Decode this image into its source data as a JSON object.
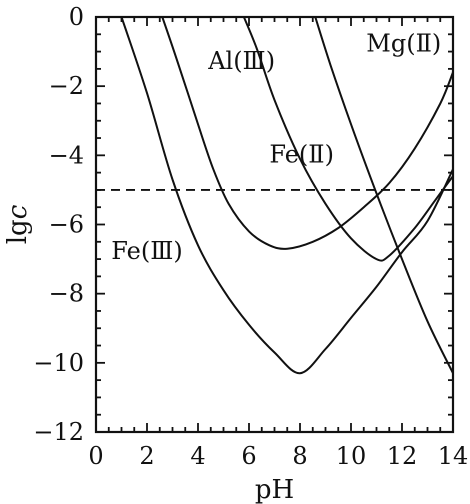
{
  "chart_data": {
    "type": "line",
    "xlabel": "pH",
    "ylabel": "lgc",
    "xlim": [
      0,
      14
    ],
    "ylim": [
      -12,
      0
    ],
    "x_ticks": [
      0,
      2,
      4,
      6,
      8,
      10,
      12,
      14
    ],
    "y_ticks": [
      0,
      -2,
      -4,
      -6,
      -8,
      -10,
      -12
    ],
    "x_tick_labels": [
      "0",
      "2",
      "4",
      "6",
      "8",
      "10",
      "12",
      "14"
    ],
    "y_tick_labels": [
      "0",
      "−2",
      "−4",
      "−6",
      "−8",
      "−10",
      "−12"
    ],
    "reference_line": {
      "y": -5,
      "style": "dashed"
    },
    "grid": false,
    "series": [
      {
        "name": "Fe(Ⅲ)",
        "points": [
          [
            1.0,
            0
          ],
          [
            2.0,
            -2.2
          ],
          [
            3.0,
            -4.7
          ],
          [
            4.0,
            -6.6
          ],
          [
            5.0,
            -7.9
          ],
          [
            6.0,
            -8.9
          ],
          [
            7.0,
            -9.7
          ],
          [
            8.0,
            -10.3
          ],
          [
            9.0,
            -9.6
          ],
          [
            10.0,
            -8.7
          ],
          [
            11.0,
            -7.8
          ],
          [
            12.0,
            -6.8
          ],
          [
            13.0,
            -5.9
          ],
          [
            14.0,
            -4.4
          ]
        ]
      },
      {
        "name": "Al(Ⅲ)",
        "points": [
          [
            2.6,
            0
          ],
          [
            3.2,
            -1.3
          ],
          [
            4.0,
            -3.1
          ],
          [
            4.6,
            -4.4
          ],
          [
            5.2,
            -5.4
          ],
          [
            6.0,
            -6.2
          ],
          [
            6.8,
            -6.6
          ],
          [
            7.5,
            -6.7
          ],
          [
            8.5,
            -6.5
          ],
          [
            9.5,
            -6.1
          ],
          [
            10.5,
            -5.5
          ],
          [
            11.5,
            -4.8
          ],
          [
            12.5,
            -3.8
          ],
          [
            13.5,
            -2.5
          ],
          [
            14.0,
            -1.6
          ]
        ]
      },
      {
        "name": "Fe(Ⅱ)",
        "points": [
          [
            5.8,
            0
          ],
          [
            6.3,
            -0.9
          ],
          [
            7.0,
            -2.4
          ],
          [
            8.0,
            -4.1
          ],
          [
            9.0,
            -5.4
          ],
          [
            10.0,
            -6.4
          ],
          [
            11.0,
            -7.0
          ],
          [
            11.5,
            -6.9
          ],
          [
            12.5,
            -6.1
          ],
          [
            13.3,
            -5.3
          ],
          [
            14.0,
            -4.6
          ]
        ]
      },
      {
        "name": "Mg(Ⅱ)",
        "points": [
          [
            8.6,
            0
          ],
          [
            9.2,
            -1.4
          ],
          [
            10.0,
            -3.1
          ],
          [
            11.0,
            -5.1
          ],
          [
            12.0,
            -7.0
          ],
          [
            13.0,
            -8.8
          ],
          [
            14.0,
            -10.3
          ]
        ]
      }
    ],
    "annotations": [
      {
        "text": "Al(Ⅲ)",
        "x": 4.4,
        "y": -1.5
      },
      {
        "text": "Mg(Ⅱ)",
        "x": 10.6,
        "y": -1.0
      },
      {
        "text": "Fe(Ⅱ)",
        "x": 6.8,
        "y": -4.2
      },
      {
        "text": "Fe(Ⅲ)",
        "x": 0.6,
        "y": -7.0
      }
    ]
  }
}
